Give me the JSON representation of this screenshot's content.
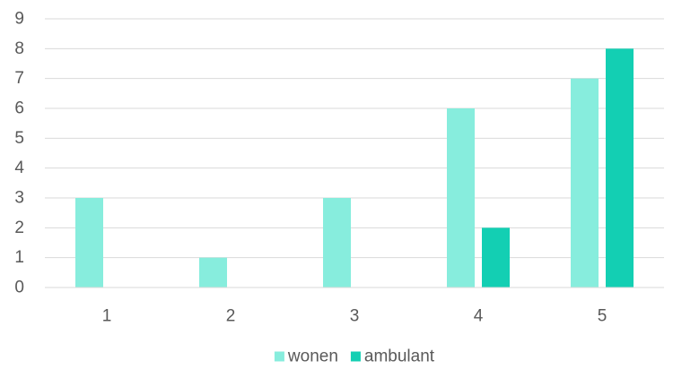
{
  "chart_data": {
    "type": "bar",
    "title": "",
    "xlabel": "",
    "ylabel": "",
    "categories": [
      "1",
      "2",
      "3",
      "4",
      "5"
    ],
    "series": [
      {
        "name": "wonen",
        "color": "#87EDDD",
        "values": [
          3,
          1,
          3,
          6,
          7
        ]
      },
      {
        "name": "ambulant",
        "color": "#13CFB3",
        "values": [
          0,
          0,
          0,
          2,
          8
        ]
      }
    ],
    "ylim": [
      0,
      9
    ],
    "yticks": [
      "0",
      "1",
      "2",
      "3",
      "4",
      "5",
      "6",
      "7",
      "8",
      "9"
    ],
    "grid": true,
    "legend_position": "bottom"
  }
}
